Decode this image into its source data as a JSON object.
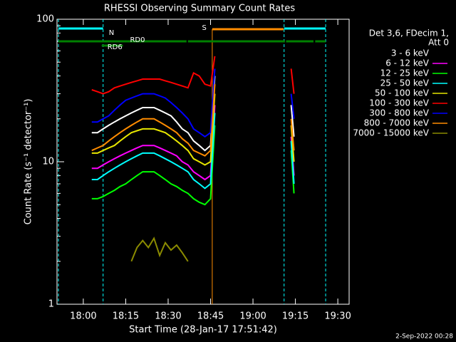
{
  "chart_data": {
    "type": "line",
    "title": "RHESSI Observing Summary Count Rates",
    "x_label": "Start Time (28-Jan-17 17:51:42)",
    "y_label": "Count Rate (s⁻¹ detector⁻¹)",
    "footer": "2-Sep-2022 00:28",
    "legend_title": [
      "Det 3,6, FDecim 1,",
      "Att 0"
    ],
    "log_y": true,
    "xlim": [
      -9.3,
      94
    ],
    "ylim": [
      1,
      100
    ],
    "xticks": [
      {
        "value": 0,
        "label": "18:00"
      },
      {
        "value": 15,
        "label": "18:15"
      },
      {
        "value": 30,
        "label": "18:30"
      },
      {
        "value": 45,
        "label": "18:45"
      },
      {
        "value": 60,
        "label": "19:00"
      },
      {
        "value": 75,
        "label": "19:15"
      },
      {
        "value": 90,
        "label": "19:30"
      }
    ],
    "yticks": [
      1,
      10,
      100
    ],
    "x": [
      3,
      5,
      7,
      9,
      11,
      13,
      15,
      17,
      19,
      21,
      23,
      25,
      27,
      29,
      31,
      33,
      35,
      37,
      39,
      41,
      43,
      45,
      46.5,
      60,
      73.5,
      74.5
    ],
    "series": [
      {
        "name": "3 - 6 keV",
        "color": "#ffffff",
        "values": [
          16,
          16,
          17,
          18,
          19,
          20,
          21,
          22,
          23,
          24,
          24,
          24,
          23,
          22,
          21,
          19,
          17,
          16,
          14,
          13,
          12,
          13,
          40,
          null,
          25,
          15
        ]
      },
      {
        "name": "6 - 12 keV",
        "color": "#ff00ff",
        "values": [
          9,
          9,
          9.5,
          10,
          10.5,
          11,
          11.5,
          12,
          12.5,
          13,
          13,
          13,
          12.5,
          12,
          11.5,
          11,
          10,
          9.5,
          8.5,
          8,
          7.5,
          8,
          25,
          null,
          15,
          8
        ]
      },
      {
        "name": "12 - 25 keV",
        "color": "#00ff00",
        "values": [
          5.5,
          5.5,
          5.7,
          6,
          6.3,
          6.7,
          7,
          7.5,
          8,
          8.5,
          8.5,
          8.5,
          8,
          7.5,
          7,
          6.7,
          6.3,
          6,
          5.5,
          5.2,
          5,
          5.5,
          18,
          null,
          12,
          6
        ]
      },
      {
        "name": "25 - 50 keV",
        "color": "#00ffff",
        "values": [
          7.5,
          7.5,
          8,
          8.5,
          9,
          9.5,
          10,
          10.5,
          11,
          11.5,
          11.5,
          11.5,
          11,
          10.5,
          10,
          9.5,
          9,
          8.5,
          7.5,
          7,
          6.5,
          7,
          22,
          null,
          14,
          7
        ]
      },
      {
        "name": "50 - 100 keV",
        "color": "#e6e600",
        "values": [
          11.5,
          11.5,
          12,
          12.5,
          13,
          14,
          15,
          16,
          16.5,
          17,
          17,
          17,
          16.5,
          16,
          15,
          14,
          13,
          12,
          10.5,
          10,
          9.5,
          10,
          30,
          null,
          18,
          10
        ]
      },
      {
        "name": "100 - 300 keV",
        "color": "#ff0000",
        "values": [
          32,
          31,
          30,
          31,
          33,
          34,
          35,
          36,
          37,
          38,
          38,
          38,
          38,
          37,
          36,
          35,
          34,
          33,
          42,
          40,
          35,
          34,
          55,
          null,
          45,
          30
        ]
      },
      {
        "name": "300 - 800 keV",
        "color": "#0000ff",
        "values": [
          19,
          19,
          20,
          21,
          23,
          25,
          27,
          28,
          29,
          30,
          30,
          30,
          29,
          28,
          26,
          24,
          22,
          20,
          17,
          16,
          15,
          16,
          45,
          null,
          30,
          20
        ]
      },
      {
        "name": "800 - 7000 keV",
        "color": "#ff8c00",
        "values": [
          12,
          12.5,
          13,
          14,
          15,
          16,
          17,
          18,
          19,
          20,
          20,
          20,
          19,
          18,
          17,
          16,
          14.5,
          13.5,
          12,
          11.5,
          11,
          12,
          35,
          null,
          20,
          12
        ]
      },
      {
        "name": "7000 - 15000 keV",
        "color": "#8b8b00",
        "values": [
          null,
          null,
          null,
          null,
          null,
          null,
          null,
          2,
          2.5,
          2.8,
          2.5,
          2.9,
          2.2,
          2.7,
          2.4,
          2.6,
          2.3,
          2,
          null,
          null,
          null,
          null,
          null,
          null,
          null,
          null
        ]
      }
    ],
    "flags": [
      {
        "label": "N",
        "color": "#00ffff",
        "segments": [
          [
            -8.8,
            7
          ],
          [
            71,
            85.7
          ]
        ]
      },
      {
        "label": "S",
        "color": "#ff8c00",
        "segments": [
          [
            45.6,
            70.8
          ]
        ]
      },
      {
        "label": "RD0",
        "color": "#008000",
        "segments": [
          [
            -8.8,
            36.5
          ],
          [
            37,
            71.3
          ],
          [
            71.7,
            81.4
          ],
          [
            82,
            85.7
          ]
        ]
      },
      {
        "label": "RD6",
        "color": "#008000",
        "segments": [
          [
            6.5,
            14
          ]
        ]
      }
    ]
  }
}
